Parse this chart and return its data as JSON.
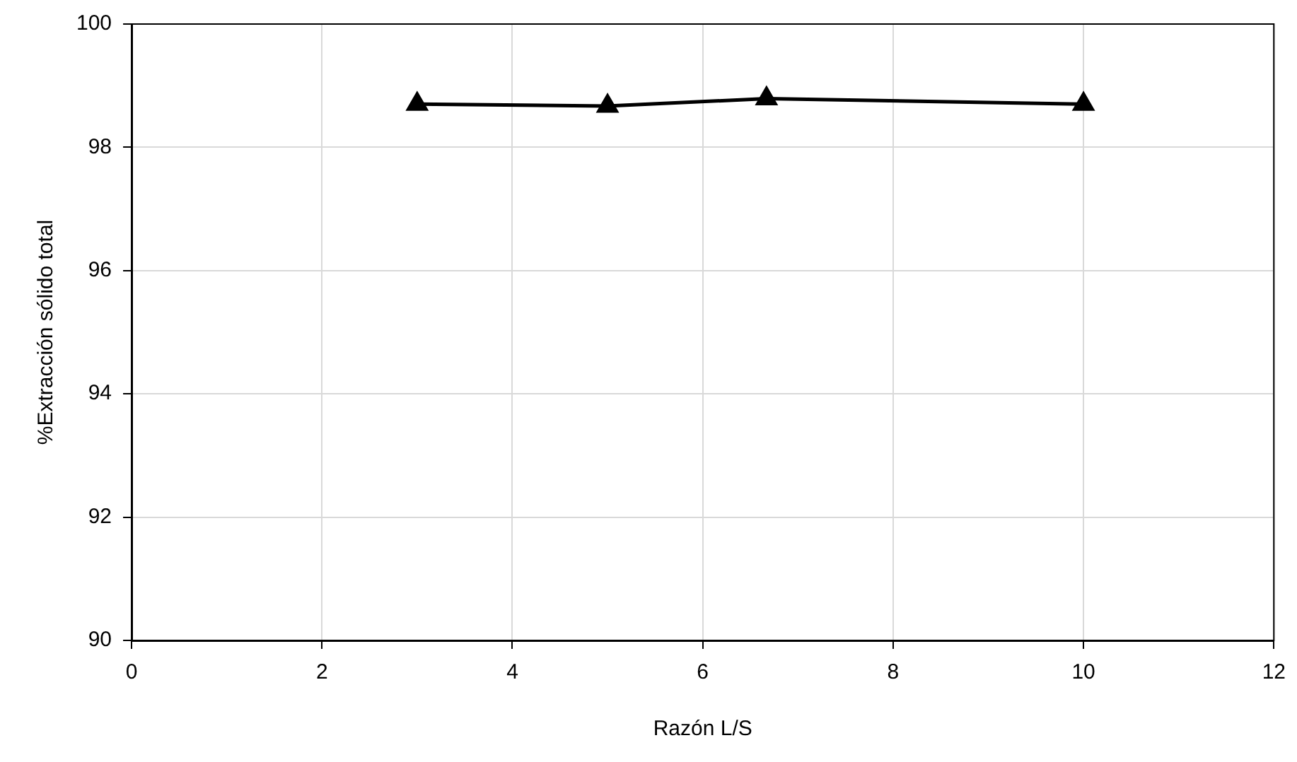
{
  "chart_data": {
    "type": "line",
    "xlabel": "Razón L/S",
    "ylabel": "%Extracción sólido total",
    "x": [
      3,
      5,
      6.67,
      10
    ],
    "series": [
      {
        "color": "#000000",
        "values": [
          98.7,
          98.67,
          98.79,
          98.7
        ]
      }
    ],
    "xlim": [
      0,
      12
    ],
    "xticks": [
      0,
      2,
      4,
      6,
      8,
      10,
      12
    ],
    "ylim": [
      90,
      100
    ],
    "yticks": [
      90,
      92,
      94,
      96,
      98,
      100
    ],
    "grid": true,
    "legend": false,
    "marker": "triangle",
    "line_style": "solid"
  }
}
